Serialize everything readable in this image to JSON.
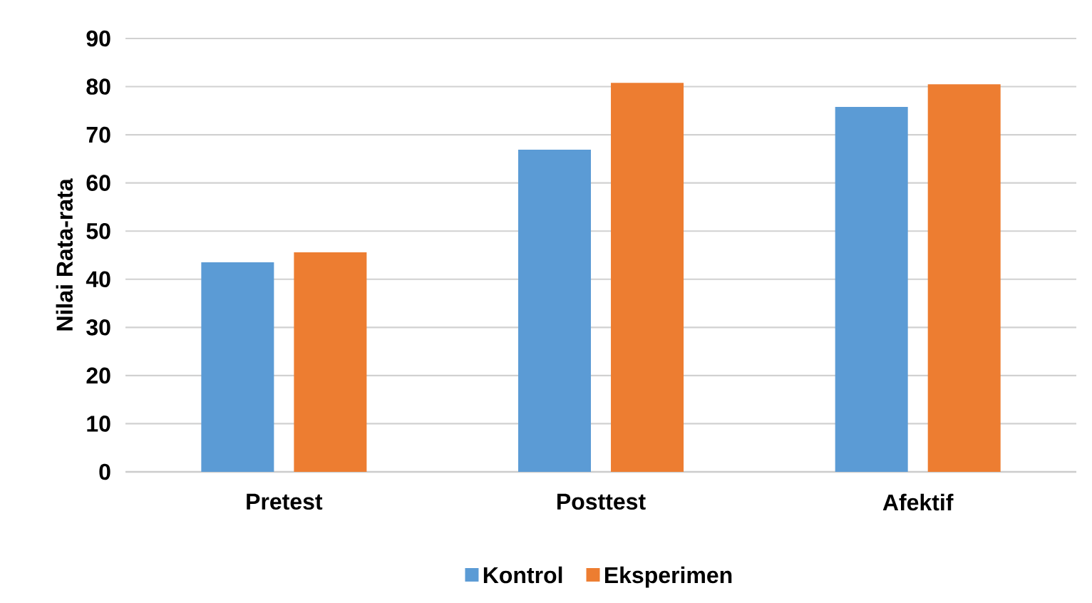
{
  "chart_data": {
    "type": "bar",
    "categories": [
      "Pretest",
      "Posttest",
      "Afektif"
    ],
    "series": [
      {
        "name": "Kontrol",
        "color": "#5b9bd5",
        "values": [
          43.5,
          66.9,
          75.8
        ]
      },
      {
        "name": "Eksperimen",
        "color": "#ed7d31",
        "values": [
          45.6,
          80.8,
          80.5
        ]
      }
    ],
    "ylabel": "Nilai Rata-rata",
    "ylim": [
      0,
      90
    ],
    "yticks": [
      0,
      10,
      20,
      30,
      40,
      50,
      60,
      70,
      80,
      90
    ],
    "grid": "y",
    "legend": "bottom"
  }
}
